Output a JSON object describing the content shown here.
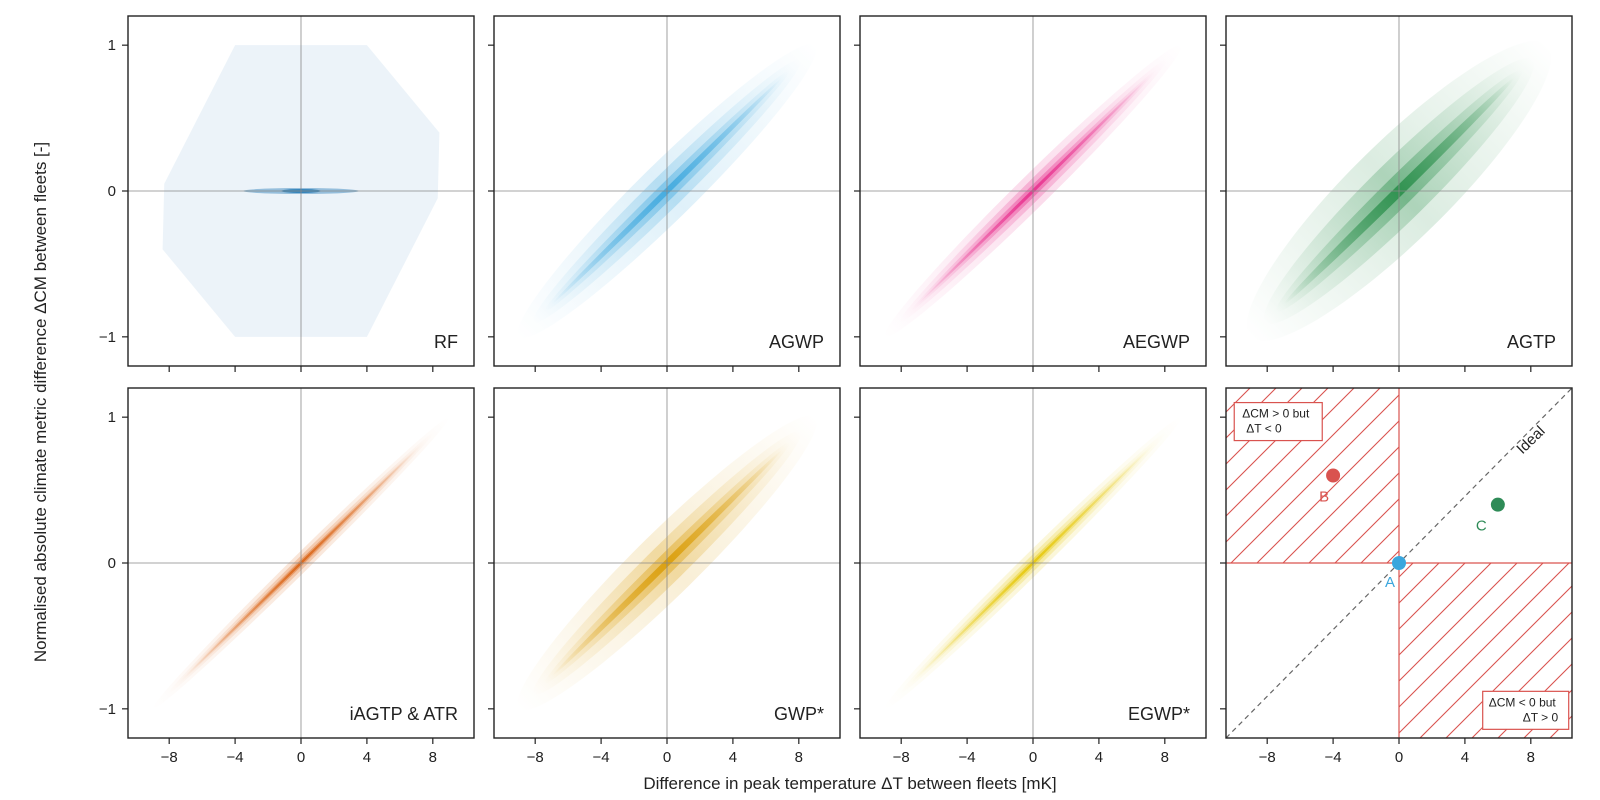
{
  "chart_data": [
    {
      "type": "heatmap",
      "label": "RF",
      "color": "#2c7fb8",
      "style": "blob",
      "spread": 0.5
    },
    {
      "type": "heatmap",
      "label": "AGWP",
      "color": "#3aa6dd",
      "style": "band",
      "spread": 0.16
    },
    {
      "type": "heatmap",
      "label": "AEGWP",
      "color": "#e7298a",
      "style": "band",
      "spread": 0.09
    },
    {
      "type": "heatmap",
      "label": "AGTP",
      "color": "#238b45",
      "style": "band",
      "spread": 0.28
    },
    {
      "type": "heatmap",
      "label": "iAGTP & ATR",
      "color": "#d95f0e",
      "style": "band",
      "spread": 0.05
    },
    {
      "type": "heatmap",
      "label": "GWP*",
      "color": "#d99a00",
      "style": "band",
      "spread": 0.18
    },
    {
      "type": "heatmap",
      "label": "EGWP*",
      "color": "#e5c600",
      "style": "band",
      "spread": 0.06
    },
    {
      "type": "scatter",
      "label": "",
      "ideal_label": "Ideal",
      "points": [
        {
          "name": "A",
          "x": 0,
          "y": 0,
          "color": "#3aa6dd"
        },
        {
          "name": "B",
          "x": -4,
          "y": 0.6,
          "color": "#d9534f"
        },
        {
          "name": "C",
          "x": 6,
          "y": 0.4,
          "color": "#2e8b57"
        }
      ],
      "boxes": [
        {
          "line1": "ΔCM > 0 but",
          "line2": "ΔT < 0"
        },
        {
          "line1": "ΔCM < 0 but",
          "line2": "ΔT > 0"
        }
      ],
      "hatch_color": "#d9534f"
    }
  ],
  "axes": {
    "xlabel": "Difference in peak temperature ΔT between fleets [mK]",
    "ylabel": "Normalised absolute climate metric difference ΔCM between fleets [-]",
    "xlim": [
      -10.5,
      10.5
    ],
    "ylim": [
      -1.2,
      1.2
    ],
    "xticks": [
      -8,
      -4,
      0,
      4,
      8
    ],
    "yticks": [
      -1,
      0,
      1
    ],
    "xtick_labels": [
      "−8",
      "−4",
      "0",
      "4",
      "8"
    ],
    "ytick_labels": [
      "−1",
      "0",
      "1"
    ]
  }
}
